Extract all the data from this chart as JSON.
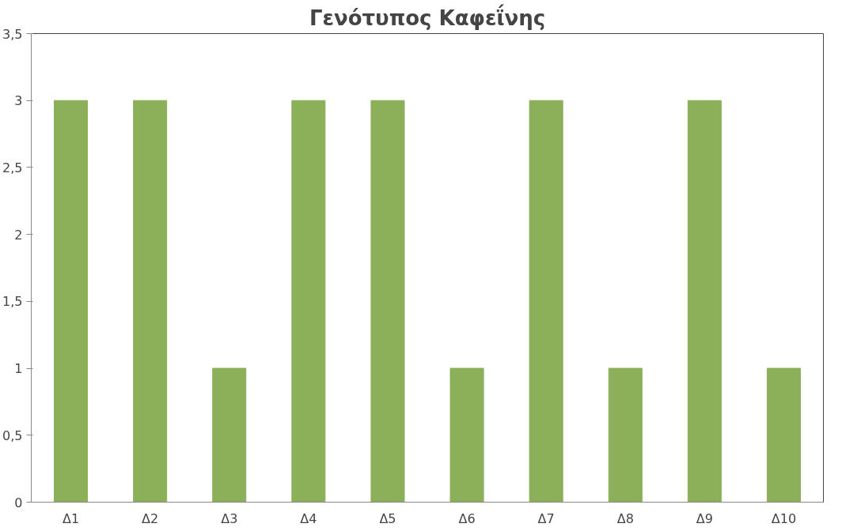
{
  "chart_data": {
    "type": "bar",
    "title": "Γενότυπος Καφεΐνης",
    "categories": [
      "Δ1",
      "Δ2",
      "Δ3",
      "Δ4",
      "Δ5",
      "Δ6",
      "Δ7",
      "Δ8",
      "Δ9",
      "Δ10"
    ],
    "values": [
      3,
      3,
      1,
      3,
      3,
      1,
      3,
      1,
      3,
      1
    ],
    "color": "#8caf5a",
    "ylim": [
      0,
      3.5
    ],
    "yticks": [
      0,
      {
        "value": 0.5,
        "label": "0,5"
      },
      1,
      {
        "value": 1.5,
        "label": "1,5"
      },
      2,
      {
        "value": 2.5,
        "label": "2,5"
      },
      3,
      {
        "value": 3.5,
        "label": "3,5"
      }
    ],
    "grid": false
  }
}
